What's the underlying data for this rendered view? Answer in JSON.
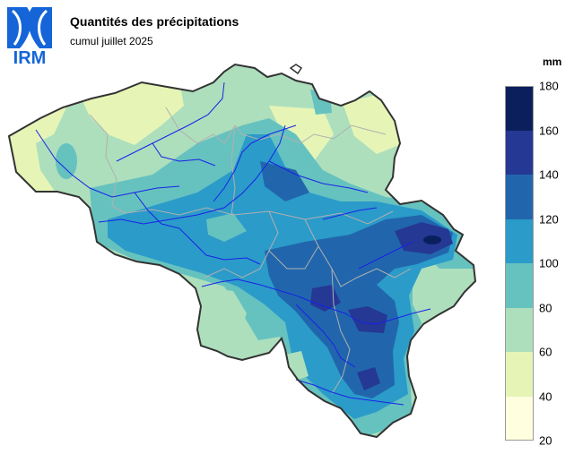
{
  "header": {
    "title": "Quantités des précipitations",
    "subtitle": "cumul juillet 2025",
    "logo_text": "IRM"
  },
  "legend": {
    "unit": "mm",
    "ticks": [
      "180",
      "160",
      "140",
      "120",
      "100",
      "80",
      "60",
      "40",
      "20"
    ],
    "bands": [
      {
        "from": 160,
        "to": 180,
        "color": "#0b1f5c"
      },
      {
        "from": 140,
        "to": 160,
        "color": "#253894"
      },
      {
        "from": 120,
        "to": 140,
        "color": "#2166ac"
      },
      {
        "from": 100,
        "to": 120,
        "color": "#2b9bc9"
      },
      {
        "from": 80,
        "to": 100,
        "color": "#66c2bf"
      },
      {
        "from": 60,
        "to": 80,
        "color": "#addfbd"
      },
      {
        "from": 40,
        "to": 60,
        "color": "#e6f5b6"
      },
      {
        "from": 20,
        "to": 40,
        "color": "#ffffe0"
      }
    ]
  },
  "colors": {
    "border": "#333333",
    "rivers": "#1a22e6",
    "provinces": "#b0b0b0",
    "logo": "#1565d8"
  }
}
